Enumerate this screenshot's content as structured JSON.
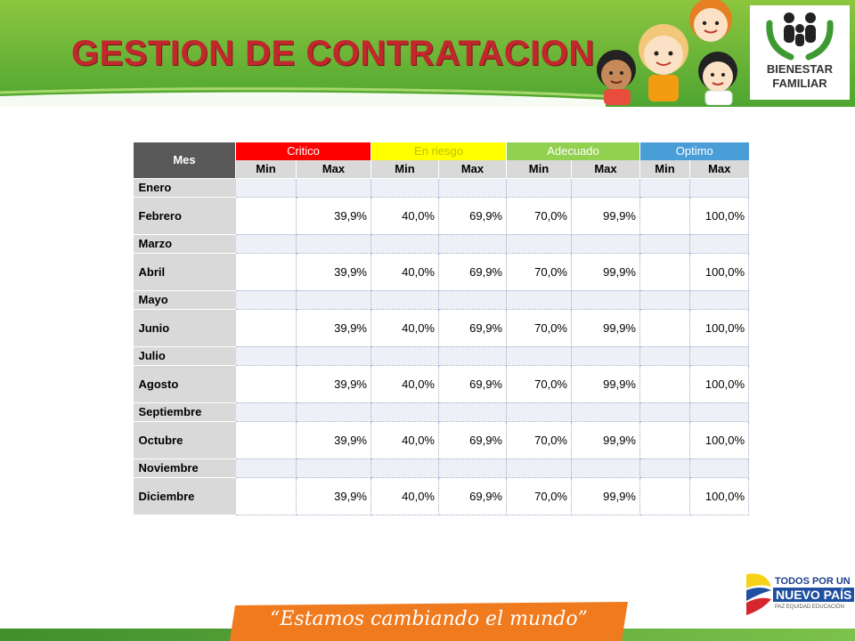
{
  "header": {
    "title": "GESTION DE CONTRATACION",
    "logo_line1": "BIENESTAR",
    "logo_line2": "FAMILIAR"
  },
  "colors": {
    "title": "#c1272d",
    "header_green": "#5aaa38",
    "critico": "#ff0000",
    "en_riesgo": "#ffff00",
    "adecuado": "#92d050",
    "optimo": "#4a9ed8"
  },
  "table": {
    "mes_header": "Mes",
    "categories": [
      "Critico",
      "En riesgo",
      "Adecuado",
      "Optimo"
    ],
    "min_label": "Min",
    "max_label": "Max",
    "rows": [
      {
        "month": "Enero",
        "values": [
          "",
          "",
          "",
          "",
          "",
          "",
          "",
          ""
        ]
      },
      {
        "month": "Febrero",
        "values": [
          "",
          "39,9%",
          "40,0%",
          "69,9%",
          "70,0%",
          "99,9%",
          "",
          "100,0%"
        ]
      },
      {
        "month": "Marzo",
        "values": [
          "",
          "",
          "",
          "",
          "",
          "",
          "",
          ""
        ]
      },
      {
        "month": "Abril",
        "values": [
          "",
          "39,9%",
          "40,0%",
          "69,9%",
          "70,0%",
          "99,9%",
          "",
          "100,0%"
        ]
      },
      {
        "month": "Mayo",
        "values": [
          "",
          "",
          "",
          "",
          "",
          "",
          "",
          ""
        ]
      },
      {
        "month": "Junio",
        "values": [
          "",
          "39,9%",
          "40,0%",
          "69,9%",
          "70,0%",
          "99,9%",
          "",
          "100,0%"
        ]
      },
      {
        "month": "Julio",
        "values": [
          "",
          "",
          "",
          "",
          "",
          "",
          "",
          ""
        ]
      },
      {
        "month": "Agosto",
        "values": [
          "",
          "39,9%",
          "40,0%",
          "69,9%",
          "70,0%",
          "99,9%",
          "",
          "100,0%"
        ]
      },
      {
        "month": "Septiembre",
        "values": [
          "",
          "",
          "",
          "",
          "",
          "",
          "",
          ""
        ]
      },
      {
        "month": "Octubre",
        "values": [
          "",
          "39,9%",
          "40,0%",
          "69,9%",
          "70,0%",
          "99,9%",
          "",
          "100,0%"
        ]
      },
      {
        "month": "Noviembre",
        "values": [
          "",
          "",
          "",
          "",
          "",
          "",
          "",
          ""
        ]
      },
      {
        "month": "Diciembre",
        "values": [
          "",
          "39,9%",
          "40,0%",
          "69,9%",
          "70,0%",
          "99,9%",
          "",
          "100,0%"
        ]
      }
    ]
  },
  "footer": {
    "slogan": "“Estamos cambiando el mundo”",
    "gov_line1": "TODOS POR UN",
    "gov_line2": "NUEVO PAÍS",
    "gov_line3": "PAZ  EQUIDAD  EDUCACIÓN"
  }
}
